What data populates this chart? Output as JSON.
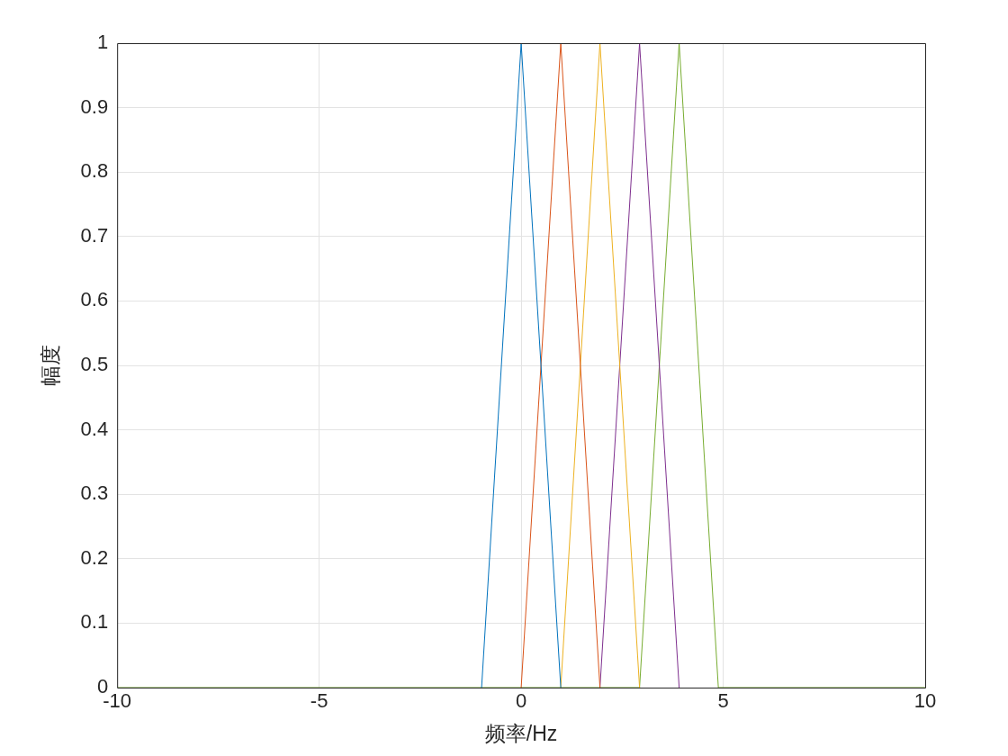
{
  "chart_data": {
    "type": "line",
    "xlabel": "频率/Hz",
    "ylabel": "幅度",
    "xlim": [
      -10,
      10
    ],
    "ylim": [
      0,
      1
    ],
    "xticks": [
      -10,
      -5,
      0,
      5,
      10
    ],
    "yticks": [
      0,
      0.1,
      0.2,
      0.3,
      0.4,
      0.5,
      0.6,
      0.7,
      0.8,
      0.9,
      1
    ],
    "grid": true,
    "legend": false,
    "marker": "none",
    "line_style": "solid",
    "series": [
      {
        "color": "#0072bd",
        "x": [
          -0.98,
          0,
          0.98
        ],
        "values": [
          0,
          1,
          0
        ]
      },
      {
        "color": "#d95319",
        "x": [
          0,
          0.98,
          1.95
        ],
        "values": [
          0,
          1,
          0
        ]
      },
      {
        "color": "#edb120",
        "x": [
          0.98,
          1.95,
          2.93
        ],
        "values": [
          0,
          1,
          0
        ]
      },
      {
        "color": "#7e2f8e",
        "x": [
          1.95,
          2.93,
          3.91
        ],
        "values": [
          0,
          1,
          0
        ]
      },
      {
        "color": "#77ac30",
        "x": [
          -10,
          2.93,
          3.91,
          4.88,
          10
        ],
        "values": [
          0,
          0,
          1,
          0,
          0
        ]
      }
    ]
  }
}
